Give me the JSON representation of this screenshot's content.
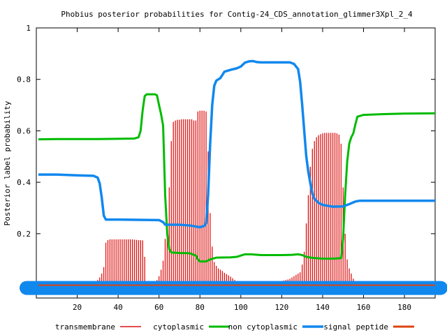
{
  "chart_data": {
    "type": "line",
    "title": "Phobius posterior probabilities for Contig-24_CDS_annotation_glimmer3Xpl_2_4",
    "xlabel": "",
    "ylabel": "Posterior label probability",
    "xlim": [
      0,
      195
    ],
    "ylim": [
      -0.05,
      1
    ],
    "x_ticks": [
      20,
      40,
      60,
      80,
      100,
      120,
      140,
      160,
      180
    ],
    "y_ticks": [
      0.2,
      0.4,
      0.6,
      0.8,
      1
    ],
    "y_tick_labels": [
      "0.2",
      "0.4",
      "0.6",
      "0.8",
      "1"
    ],
    "legend_position": "bottom",
    "colors": {
      "transmembrane": "#dd1111",
      "cytoplasmic": "#00bb00",
      "non_cytoplasmic": "#1188ee",
      "signal_peptide": "#dd4411"
    },
    "series": [
      {
        "name": "transmembrane",
        "style": "impulses",
        "color": "#dd1111",
        "points": [
          [
            1,
            0.0
          ],
          [
            2,
            0.0
          ],
          [
            3,
            0.0
          ],
          [
            4,
            0.0
          ],
          [
            5,
            0.0
          ],
          [
            6,
            0.0
          ],
          [
            7,
            0.0
          ],
          [
            8,
            0.0
          ],
          [
            9,
            0.0
          ],
          [
            10,
            0.0
          ],
          [
            11,
            0.0
          ],
          [
            12,
            0.0
          ],
          [
            13,
            0.0
          ],
          [
            14,
            0.0
          ],
          [
            15,
            0.0
          ],
          [
            16,
            0.0
          ],
          [
            17,
            0.0
          ],
          [
            18,
            0.0
          ],
          [
            19,
            0.0
          ],
          [
            20,
            0.0
          ],
          [
            21,
            0.005
          ],
          [
            22,
            0.005
          ],
          [
            23,
            0.005
          ],
          [
            24,
            0.005
          ],
          [
            25,
            0.005
          ],
          [
            26,
            0.005
          ],
          [
            27,
            0.008
          ],
          [
            28,
            0.01
          ],
          [
            29,
            0.015
          ],
          [
            30,
            0.02
          ],
          [
            31,
            0.03
          ],
          [
            32,
            0.045
          ],
          [
            33,
            0.07
          ],
          [
            34,
            0.165
          ],
          [
            35,
            0.175
          ],
          [
            36,
            0.178
          ],
          [
            37,
            0.178
          ],
          [
            38,
            0.178
          ],
          [
            39,
            0.178
          ],
          [
            40,
            0.178
          ],
          [
            41,
            0.178
          ],
          [
            42,
            0.178
          ],
          [
            43,
            0.178
          ],
          [
            44,
            0.178
          ],
          [
            45,
            0.178
          ],
          [
            46,
            0.178
          ],
          [
            47,
            0.178
          ],
          [
            48,
            0.177
          ],
          [
            49,
            0.176
          ],
          [
            50,
            0.175
          ],
          [
            51,
            0.175
          ],
          [
            52,
            0.174
          ],
          [
            53,
            0.11
          ],
          [
            54,
            0.01
          ],
          [
            55,
            0.005
          ],
          [
            56,
            0.005
          ],
          [
            57,
            0.005
          ],
          [
            58,
            0.01
          ],
          [
            59,
            0.02
          ],
          [
            60,
            0.035
          ],
          [
            61,
            0.06
          ],
          [
            62,
            0.095
          ],
          [
            63,
            0.18
          ],
          [
            64,
            0.24
          ],
          [
            65,
            0.38
          ],
          [
            66,
            0.56
          ],
          [
            67,
            0.635
          ],
          [
            68,
            0.64
          ],
          [
            69,
            0.643
          ],
          [
            70,
            0.643
          ],
          [
            71,
            0.645
          ],
          [
            72,
            0.645
          ],
          [
            73,
            0.645
          ],
          [
            74,
            0.645
          ],
          [
            75,
            0.645
          ],
          [
            76,
            0.645
          ],
          [
            77,
            0.64
          ],
          [
            78,
            0.64
          ],
          [
            79,
            0.675
          ],
          [
            80,
            0.678
          ],
          [
            81,
            0.678
          ],
          [
            82,
            0.678
          ],
          [
            83,
            0.675
          ],
          [
            84,
            0.52
          ],
          [
            85,
            0.28
          ],
          [
            86,
            0.15
          ],
          [
            87,
            0.09
          ],
          [
            88,
            0.075
          ],
          [
            89,
            0.065
          ],
          [
            90,
            0.06
          ],
          [
            91,
            0.055
          ],
          [
            92,
            0.048
          ],
          [
            93,
            0.043
          ],
          [
            94,
            0.038
          ],
          [
            95,
            0.033
          ],
          [
            96,
            0.027
          ],
          [
            97,
            0.02
          ],
          [
            98,
            0.013
          ],
          [
            99,
            0.008
          ],
          [
            100,
            0.004
          ],
          [
            101,
            0.002
          ],
          [
            102,
            0.002
          ],
          [
            103,
            0.003
          ],
          [
            104,
            0.005
          ],
          [
            105,
            0.008
          ],
          [
            106,
            0.01
          ],
          [
            107,
            0.012
          ],
          [
            108,
            0.014
          ],
          [
            109,
            0.015
          ],
          [
            110,
            0.015
          ],
          [
            111,
            0.015
          ],
          [
            112,
            0.015
          ],
          [
            113,
            0.015
          ],
          [
            114,
            0.015
          ],
          [
            115,
            0.015
          ],
          [
            116,
            0.015
          ],
          [
            117,
            0.015
          ],
          [
            118,
            0.015
          ],
          [
            119,
            0.015
          ],
          [
            120,
            0.016
          ],
          [
            121,
            0.018
          ],
          [
            122,
            0.02
          ],
          [
            123,
            0.022
          ],
          [
            124,
            0.025
          ],
          [
            125,
            0.03
          ],
          [
            126,
            0.035
          ],
          [
            127,
            0.04
          ],
          [
            128,
            0.045
          ],
          [
            129,
            0.05
          ],
          [
            130,
            0.08
          ],
          [
            131,
            0.13
          ],
          [
            132,
            0.24
          ],
          [
            133,
            0.35
          ],
          [
            134,
            0.46
          ],
          [
            135,
            0.53
          ],
          [
            136,
            0.56
          ],
          [
            137,
            0.575
          ],
          [
            138,
            0.583
          ],
          [
            139,
            0.587
          ],
          [
            140,
            0.59
          ],
          [
            141,
            0.592
          ],
          [
            142,
            0.592
          ],
          [
            143,
            0.592
          ],
          [
            144,
            0.592
          ],
          [
            145,
            0.592
          ],
          [
            146,
            0.592
          ],
          [
            147,
            0.59
          ],
          [
            148,
            0.585
          ],
          [
            149,
            0.55
          ],
          [
            150,
            0.38
          ],
          [
            151,
            0.2
          ],
          [
            152,
            0.1
          ],
          [
            153,
            0.065
          ],
          [
            154,
            0.045
          ],
          [
            155,
            0.025
          ],
          [
            156,
            0.01
          ],
          [
            157,
            0.005
          ],
          [
            158,
            0.003
          ],
          [
            159,
            0.002
          ],
          [
            160,
            0.0
          ],
          [
            161,
            0.0
          ],
          [
            162,
            0.0
          ],
          [
            163,
            0.0
          ],
          [
            164,
            0.0
          ],
          [
            165,
            0.0
          ],
          [
            166,
            0.0
          ],
          [
            167,
            0.0
          ],
          [
            168,
            0.0
          ],
          [
            169,
            0.0
          ],
          [
            170,
            0.0
          ],
          [
            171,
            0.0
          ],
          [
            172,
            0.0
          ],
          [
            173,
            0.0
          ],
          [
            174,
            0.0
          ],
          [
            175,
            0.0
          ],
          [
            176,
            0.0
          ],
          [
            177,
            0.0
          ],
          [
            178,
            0.0
          ],
          [
            179,
            0.0
          ],
          [
            180,
            0.0
          ],
          [
            181,
            0.0
          ],
          [
            182,
            0.0
          ],
          [
            183,
            0.0
          ],
          [
            184,
            0.0
          ],
          [
            185,
            0.0
          ],
          [
            186,
            0.0
          ],
          [
            187,
            0.0
          ],
          [
            188,
            0.0
          ],
          [
            189,
            0.0
          ],
          [
            190,
            0.0
          ],
          [
            191,
            0.0
          ],
          [
            192,
            0.0
          ],
          [
            193,
            0.0
          ],
          [
            194,
            0.0
          ],
          [
            195,
            0.0
          ]
        ]
      },
      {
        "name": "cytoplasmic",
        "style": "line",
        "color": "#00bb00",
        "points": [
          [
            1,
            0.567
          ],
          [
            10,
            0.568
          ],
          [
            20,
            0.568
          ],
          [
            30,
            0.568
          ],
          [
            40,
            0.569
          ],
          [
            48,
            0.57
          ],
          [
            50,
            0.575
          ],
          [
            51,
            0.6
          ],
          [
            52,
            0.68
          ],
          [
            53,
            0.735
          ],
          [
            54,
            0.742
          ],
          [
            58,
            0.742
          ],
          [
            59,
            0.738
          ],
          [
            60,
            0.7
          ],
          [
            61,
            0.665
          ],
          [
            62,
            0.62
          ],
          [
            63,
            0.35
          ],
          [
            64,
            0.2
          ],
          [
            65,
            0.14
          ],
          [
            66,
            0.127
          ],
          [
            70,
            0.125
          ],
          [
            75,
            0.124
          ],
          [
            78,
            0.115
          ],
          [
            79,
            0.1
          ],
          [
            80,
            0.092
          ],
          [
            83,
            0.092
          ],
          [
            85,
            0.1
          ],
          [
            88,
            0.107
          ],
          [
            95,
            0.108
          ],
          [
            98,
            0.11
          ],
          [
            100,
            0.115
          ],
          [
            102,
            0.12
          ],
          [
            105,
            0.12
          ],
          [
            110,
            0.117
          ],
          [
            115,
            0.117
          ],
          [
            120,
            0.117
          ],
          [
            125,
            0.118
          ],
          [
            128,
            0.12
          ],
          [
            130,
            0.117
          ],
          [
            132,
            0.11
          ],
          [
            135,
            0.106
          ],
          [
            140,
            0.103
          ],
          [
            145,
            0.103
          ],
          [
            149,
            0.105
          ],
          [
            150,
            0.18
          ],
          [
            151,
            0.35
          ],
          [
            152,
            0.48
          ],
          [
            153,
            0.55
          ],
          [
            154,
            0.575
          ],
          [
            155,
            0.59
          ],
          [
            156,
            0.625
          ],
          [
            157,
            0.655
          ],
          [
            160,
            0.662
          ],
          [
            170,
            0.665
          ],
          [
            180,
            0.667
          ],
          [
            195,
            0.668
          ]
        ]
      },
      {
        "name": "non cytoplasmic",
        "style": "line",
        "color": "#1188ee",
        "points": [
          [
            1,
            0.43
          ],
          [
            10,
            0.43
          ],
          [
            20,
            0.427
          ],
          [
            28,
            0.425
          ],
          [
            30,
            0.418
          ],
          [
            31,
            0.395
          ],
          [
            32,
            0.34
          ],
          [
            33,
            0.27
          ],
          [
            34,
            0.255
          ],
          [
            40,
            0.255
          ],
          [
            50,
            0.254
          ],
          [
            60,
            0.253
          ],
          [
            62,
            0.245
          ],
          [
            63,
            0.235
          ],
          [
            70,
            0.235
          ],
          [
            75,
            0.232
          ],
          [
            78,
            0.228
          ],
          [
            80,
            0.225
          ],
          [
            82,
            0.23
          ],
          [
            83,
            0.24
          ],
          [
            84,
            0.35
          ],
          [
            85,
            0.55
          ],
          [
            86,
            0.7
          ],
          [
            87,
            0.775
          ],
          [
            88,
            0.795
          ],
          [
            90,
            0.805
          ],
          [
            92,
            0.83
          ],
          [
            95,
            0.837
          ],
          [
            98,
            0.843
          ],
          [
            100,
            0.85
          ],
          [
            102,
            0.865
          ],
          [
            104,
            0.87
          ],
          [
            106,
            0.871
          ],
          [
            108,
            0.867
          ],
          [
            110,
            0.866
          ],
          [
            120,
            0.866
          ],
          [
            124,
            0.866
          ],
          [
            126,
            0.86
          ],
          [
            127,
            0.85
          ],
          [
            128,
            0.84
          ],
          [
            129,
            0.79
          ],
          [
            130,
            0.7
          ],
          [
            131,
            0.6
          ],
          [
            132,
            0.5
          ],
          [
            133,
            0.44
          ],
          [
            134,
            0.395
          ],
          [
            135,
            0.355
          ],
          [
            136,
            0.335
          ],
          [
            138,
            0.32
          ],
          [
            140,
            0.312
          ],
          [
            145,
            0.305
          ],
          [
            150,
            0.306
          ],
          [
            153,
            0.315
          ],
          [
            156,
            0.325
          ],
          [
            158,
            0.328
          ],
          [
            170,
            0.328
          ],
          [
            195,
            0.328
          ]
        ]
      },
      {
        "name": "signal peptide",
        "style": "line",
        "color": "#dd4411",
        "points": [
          [
            1,
            0.0
          ],
          [
            195,
            0.0
          ]
        ]
      }
    ]
  }
}
